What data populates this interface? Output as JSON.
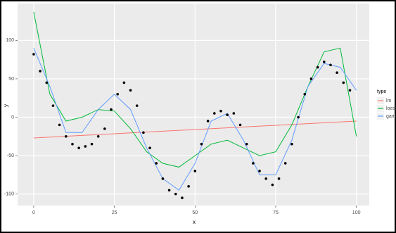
{
  "chart_data": {
    "type": "scatter",
    "x_label": "x",
    "y_label": "y",
    "xlim": [
      -5,
      104
    ],
    "ylim": [
      -115,
      148
    ],
    "xticks": [
      0,
      25,
      50,
      75,
      100
    ],
    "yticks": [
      -100,
      -50,
      0,
      50,
      100
    ],
    "grid": true,
    "point_color": "#000000",
    "points": {
      "x": [
        0,
        2,
        4,
        6,
        8,
        10,
        12,
        14,
        16,
        18,
        20,
        22,
        24,
        26,
        28,
        30,
        32,
        34,
        36,
        38,
        40,
        42,
        44,
        46,
        48,
        50,
        52,
        54,
        56,
        58,
        60,
        62,
        64,
        66,
        68,
        70,
        72,
        74,
        76,
        78,
        80,
        82,
        84,
        86,
        88,
        90,
        92,
        94,
        96,
        98
      ],
      "y": [
        82,
        60,
        45,
        15,
        -10,
        -25,
        -35,
        -40,
        -38,
        -35,
        -25,
        -15,
        10,
        30,
        45,
        35,
        15,
        -20,
        -40,
        -60,
        -80,
        -95,
        -100,
        -105,
        -90,
        -70,
        -35,
        -5,
        5,
        8,
        3,
        5,
        -10,
        -35,
        -60,
        -70,
        -80,
        -88,
        -80,
        -60,
        -35,
        0,
        30,
        50,
        65,
        72,
        68,
        58,
        45,
        35
      ]
    },
    "legend_title": "type",
    "legend_position": "right",
    "series": [
      {
        "name": "lm",
        "color": "#f8766d",
        "x": [
          0,
          100
        ],
        "y": [
          -27,
          -5
        ]
      },
      {
        "name": "loess",
        "color": "#00ba38",
        "x": [
          0,
          5,
          10,
          15,
          20,
          25,
          30,
          35,
          40,
          45,
          50,
          55,
          60,
          65,
          70,
          75,
          80,
          85,
          90,
          95,
          100
        ],
        "y": [
          137,
          30,
          -5,
          0,
          10,
          8,
          -15,
          -45,
          -60,
          -65,
          -50,
          -35,
          -30,
          -40,
          -50,
          -45,
          -10,
          40,
          85,
          90,
          -25
        ]
      },
      {
        "name": "gam",
        "color": "#619cff",
        "x": [
          0,
          5,
          10,
          15,
          20,
          25,
          30,
          35,
          40,
          45,
          50,
          55,
          60,
          65,
          70,
          75,
          80,
          85,
          90,
          95,
          100
        ],
        "y": [
          90,
          40,
          -20,
          -20,
          10,
          30,
          10,
          -40,
          -80,
          -95,
          -60,
          -5,
          5,
          -30,
          -75,
          -75,
          -30,
          40,
          70,
          65,
          35
        ]
      }
    ]
  }
}
